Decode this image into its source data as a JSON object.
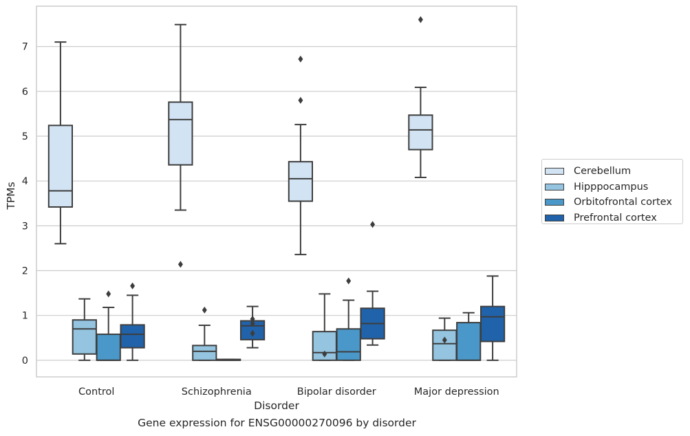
{
  "caption": "Gene expression for ENSG00000270096 by disorder",
  "colors": {
    "Cerebellum": "#d2e3f3",
    "Hipppocampus": "#94c4df",
    "Orbitofrontal cortex": "#4a98c9",
    "Prefrontal cortex": "#2163aa",
    "grid": "#cccccc",
    "line": "#3d3d3d",
    "text": "#262626"
  },
  "chart_data": {
    "type": "box",
    "title": "",
    "xlabel": "Disorder",
    "ylabel": "TPMs",
    "ylim": [
      -0.37,
      7.9
    ],
    "yticks": [
      0,
      1,
      2,
      3,
      4,
      5,
      6,
      7
    ],
    "grid": true,
    "legend_position": "right",
    "categories": [
      "Control",
      "Schizophrenia",
      "Bipolar disorder",
      "Major depression"
    ],
    "series": [
      {
        "name": "Cerebellum",
        "boxes": [
          {
            "whislo": 2.6,
            "q1": 3.42,
            "med": 3.78,
            "q3": 5.24,
            "whishi": 7.1,
            "fliers": []
          },
          {
            "whislo": 3.35,
            "q1": 4.36,
            "med": 5.37,
            "q3": 5.76,
            "whishi": 7.49,
            "fliers": [
              2.14
            ]
          },
          {
            "whislo": 2.36,
            "q1": 3.55,
            "med": 4.05,
            "q3": 4.43,
            "whishi": 5.26,
            "fliers": [
              5.8,
              6.72
            ]
          },
          {
            "whislo": 4.08,
            "q1": 4.7,
            "med": 5.14,
            "q3": 5.47,
            "whishi": 6.09,
            "fliers": [
              7.6
            ]
          }
        ]
      },
      {
        "name": "Hipppocampus",
        "boxes": [
          {
            "whislo": 0.0,
            "q1": 0.14,
            "med": 0.7,
            "q3": 0.9,
            "whishi": 1.37,
            "fliers": []
          },
          {
            "whislo": 0.0,
            "q1": 0.0,
            "med": 0.2,
            "q3": 0.33,
            "whishi": 0.78,
            "fliers": [
              1.12
            ]
          },
          {
            "whislo": 0.0,
            "q1": 0.0,
            "med": 0.17,
            "q3": 0.64,
            "whishi": 1.48,
            "fliers": [
              0.14
            ]
          },
          {
            "whislo": 0.0,
            "q1": 0.0,
            "med": 0.37,
            "q3": 0.67,
            "whishi": 0.94,
            "fliers": [
              0.45
            ]
          }
        ]
      },
      {
        "name": "Orbitofrontal cortex",
        "boxes": [
          {
            "whislo": 0.0,
            "q1": 0.0,
            "med": 0.0,
            "q3": 0.58,
            "whishi": 1.18,
            "fliers": [
              1.48
            ]
          },
          {
            "whislo": 0.0,
            "q1": 0.0,
            "med": 0.0,
            "q3": 0.02,
            "whishi": 0.02,
            "fliers": []
          },
          {
            "whislo": 0.0,
            "q1": 0.0,
            "med": 0.19,
            "q3": 0.7,
            "whishi": 1.34,
            "fliers": [
              1.77
            ]
          },
          {
            "whislo": 0.0,
            "q1": 0.0,
            "med": 0.0,
            "q3": 0.84,
            "whishi": 1.06,
            "fliers": []
          }
        ]
      },
      {
        "name": "Prefrontal cortex",
        "boxes": [
          {
            "whislo": 0.0,
            "q1": 0.28,
            "med": 0.58,
            "q3": 0.79,
            "whishi": 1.45,
            "fliers": [
              1.66
            ]
          },
          {
            "whislo": 0.28,
            "q1": 0.46,
            "med": 0.77,
            "q3": 0.88,
            "whishi": 1.2,
            "fliers": [
              0.6,
              0.82,
              0.92
            ]
          },
          {
            "whislo": 0.34,
            "q1": 0.48,
            "med": 0.82,
            "q3": 1.16,
            "whishi": 1.54,
            "fliers": [
              3.03
            ]
          },
          {
            "whislo": 0.0,
            "q1": 0.42,
            "med": 0.97,
            "q3": 1.2,
            "whishi": 1.88,
            "fliers": []
          }
        ]
      }
    ]
  }
}
